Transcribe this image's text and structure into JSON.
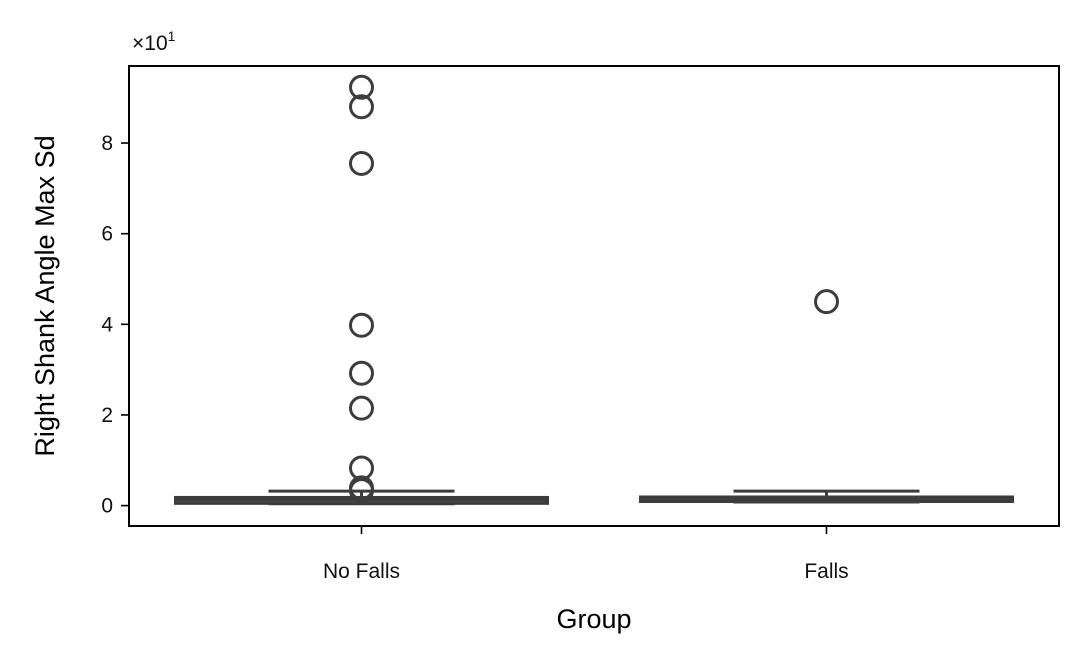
{
  "chart_data": {
    "type": "box",
    "title": "",
    "xlabel": "Group",
    "ylabel": "Right Shank Angle Max Sd",
    "y_multiplier_label": "×10",
    "y_multiplier_exponent": "1",
    "y_scale_factor": 10,
    "ylim": [
      -4.5,
      97
    ],
    "y_ticks": [
      0,
      20,
      40,
      60,
      80
    ],
    "y_tick_labels": [
      "0",
      "2",
      "4",
      "6",
      "8"
    ],
    "grid": false,
    "legend": "none",
    "box_color": "#3d3d3d",
    "categories": [
      "No Falls",
      "Falls"
    ],
    "boxes": [
      {
        "category": "No Falls",
        "whisker_low": 0.4,
        "q1": 0.5,
        "median": 1.3,
        "q3": 1.8,
        "whisker_high": 3.2,
        "outliers": [
          92.3,
          88.0,
          75.5,
          39.8,
          29.2,
          21.5,
          8.3,
          3.9,
          3.3
        ]
      },
      {
        "category": "Falls",
        "whisker_low": 0.8,
        "q1": 0.9,
        "median": 1.5,
        "q3": 1.9,
        "whisker_high": 3.2,
        "outliers": [
          45.0
        ]
      }
    ]
  }
}
